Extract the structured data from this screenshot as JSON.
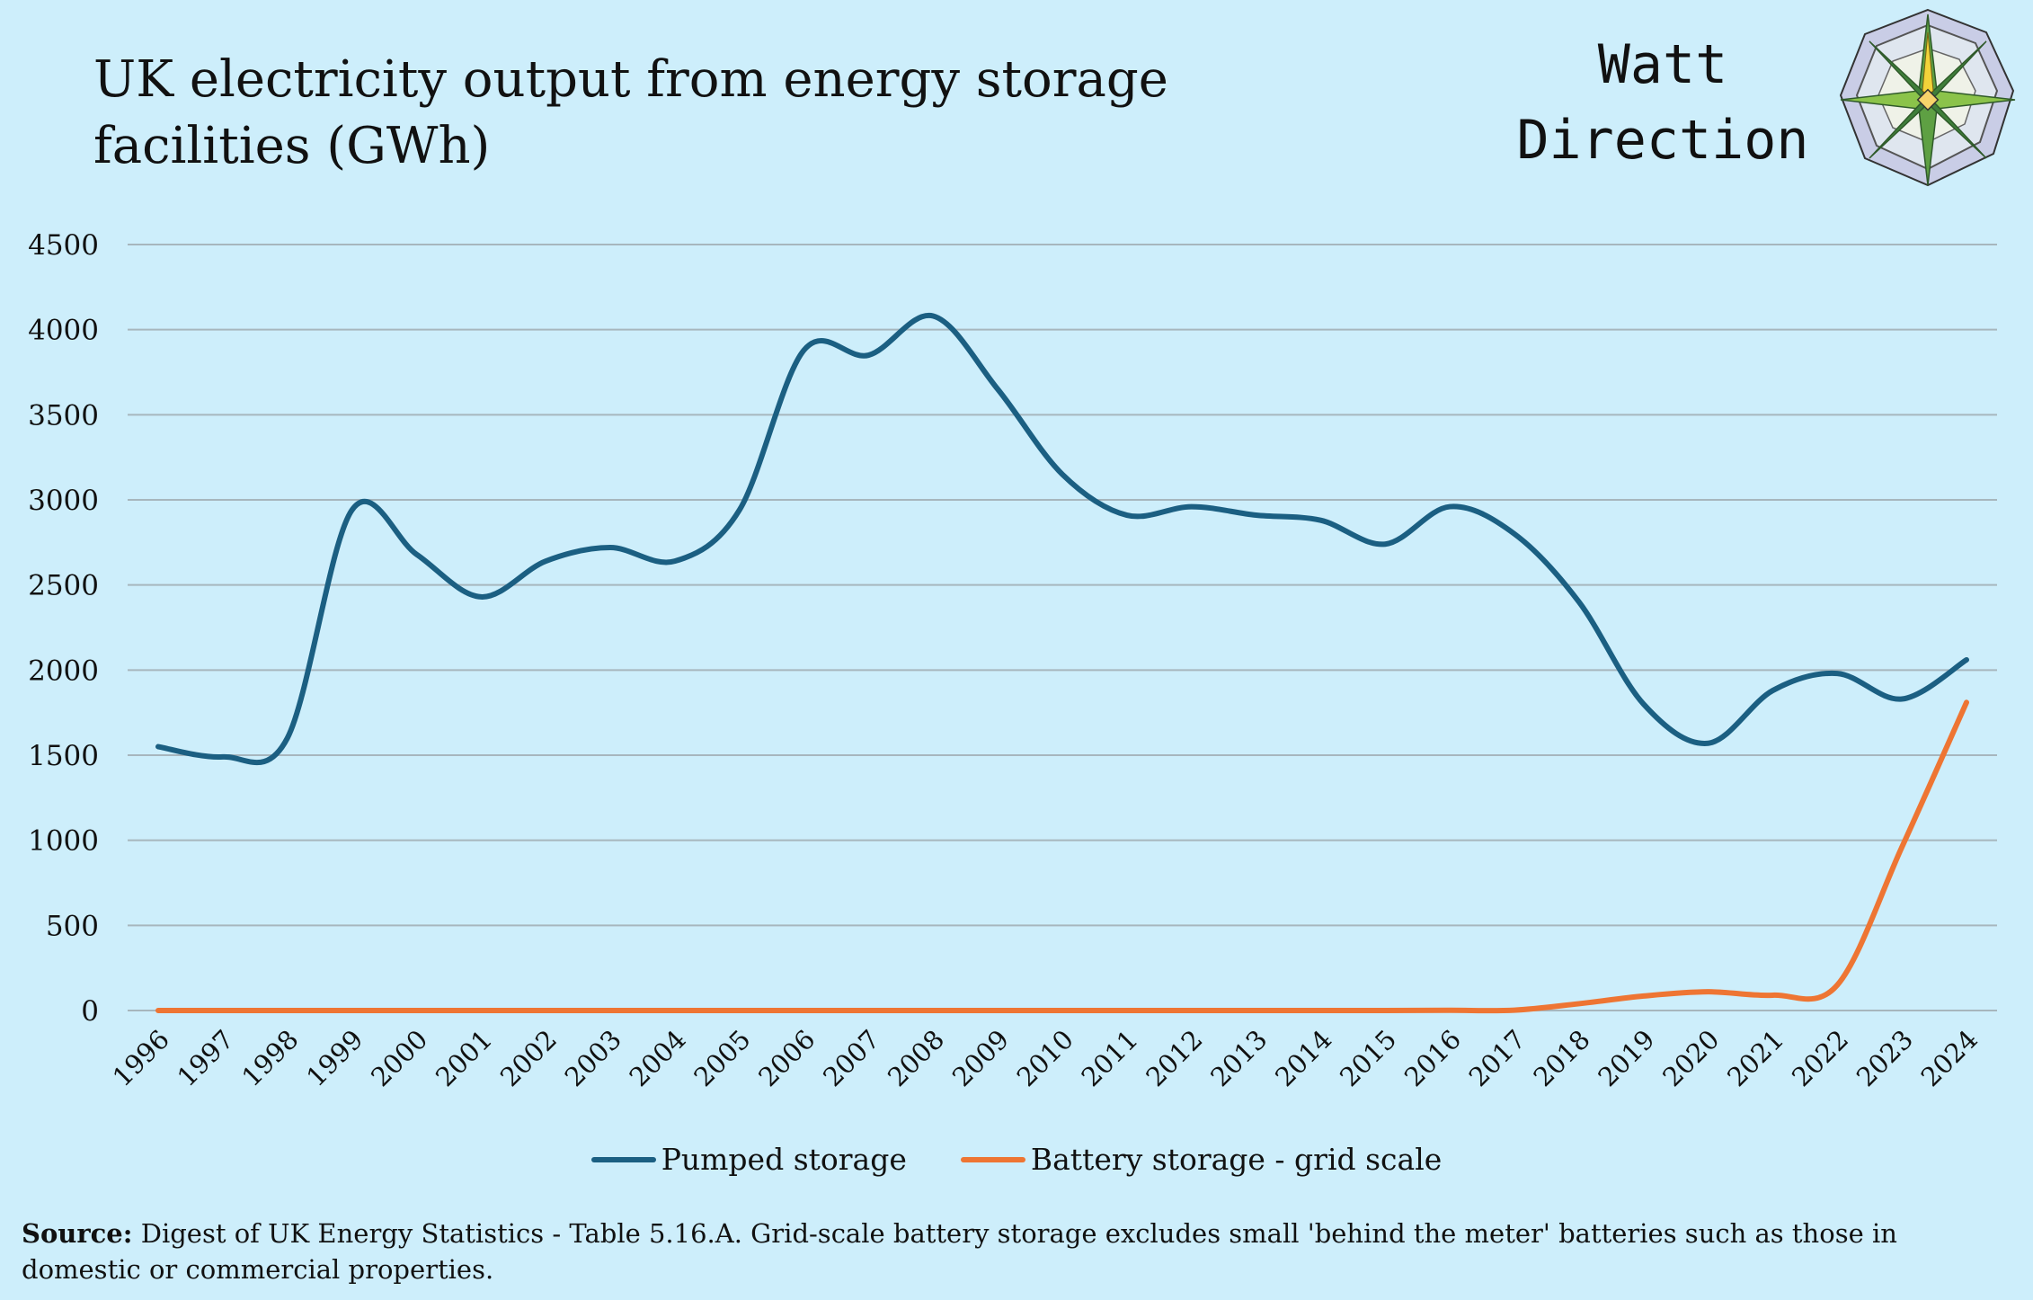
{
  "title": "UK electricity output from energy storage facilities (GWh)",
  "brand": {
    "line1": "Watt",
    "line2": "Direction"
  },
  "colors": {
    "background": "#cdeefb",
    "pumped": "#1b5f82",
    "battery": "#ee7533",
    "grid": "#a7b6bd"
  },
  "source": {
    "label": "Source:",
    "text": "Digest of UK Energy Statistics - Table 5.16.A. Grid-scale battery storage excludes small 'behind the meter' batteries such as those in domestic or commercial properties."
  },
  "chart_data": {
    "type": "line",
    "title": "UK electricity output from energy storage facilities (GWh)",
    "xlabel": "",
    "ylabel": "",
    "categories": [
      "1996",
      "1997",
      "1998",
      "1999",
      "2000",
      "2001",
      "2002",
      "2003",
      "2004",
      "2005",
      "2006",
      "2007",
      "2008",
      "2009",
      "2010",
      "2011",
      "2012",
      "2013",
      "2014",
      "2015",
      "2016",
      "2017",
      "2018",
      "2019",
      "2020",
      "2021",
      "2022",
      "2023",
      "2024"
    ],
    "ylim": [
      0,
      4500
    ],
    "yticks": [
      0,
      500,
      1000,
      1500,
      2000,
      2500,
      3000,
      3500,
      4000,
      4500
    ],
    "grid": true,
    "legend_position": "bottom",
    "series": [
      {
        "name": "Pumped storage",
        "color": "#1b5f82",
        "values": [
          1550,
          1490,
          1600,
          2940,
          2680,
          2430,
          2640,
          2720,
          2640,
          2940,
          3880,
          3850,
          4080,
          3650,
          3150,
          2910,
          2960,
          2910,
          2880,
          2740,
          2960,
          2800,
          2400,
          1800,
          1570,
          1880,
          1980,
          1830,
          2060
        ]
      },
      {
        "name": "Battery storage - grid scale",
        "color": "#ee7533",
        "values": [
          0,
          0,
          0,
          0,
          0,
          0,
          0,
          0,
          0,
          0,
          0,
          0,
          0,
          0,
          0,
          0,
          0,
          0,
          0,
          0,
          1,
          2,
          40,
          85,
          110,
          90,
          150,
          960,
          1810
        ]
      }
    ]
  }
}
